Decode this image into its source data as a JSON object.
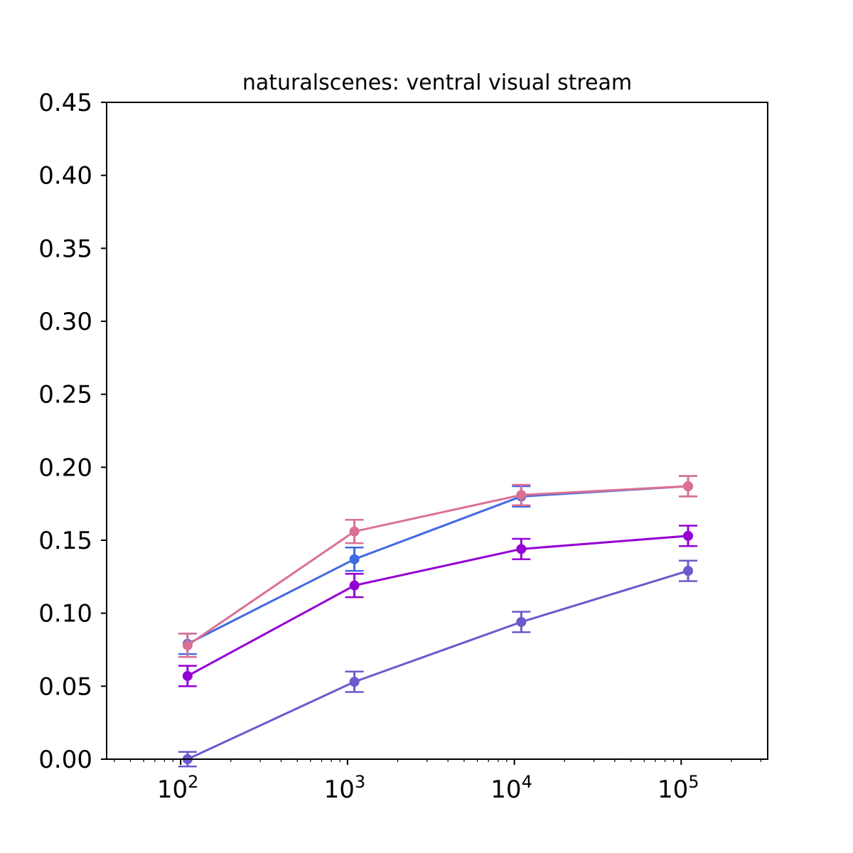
{
  "chart_data": {
    "type": "line",
    "title": "naturalscenes: ventral visual stream",
    "xlabel": "",
    "ylabel": "",
    "xscale": "log",
    "xlim": [
      36,
      330000
    ],
    "ylim": [
      0,
      0.45
    ],
    "grid": false,
    "x": [
      110,
      1100,
      11000,
      110000
    ],
    "x_tick_labels": [
      {
        "base": "10",
        "exp": "2",
        "value": 100
      },
      {
        "base": "10",
        "exp": "3",
        "value": 1000
      },
      {
        "base": "10",
        "exp": "4",
        "value": 10000
      },
      {
        "base": "10",
        "exp": "5",
        "value": 100000
      }
    ],
    "y_tick_labels": [
      "0.00",
      "0.05",
      "0.10",
      "0.15",
      "0.20",
      "0.25",
      "0.30",
      "0.35",
      "0.40",
      "0.45"
    ],
    "y_ticks": [
      0,
      0.05,
      0.1,
      0.15,
      0.2,
      0.25,
      0.3,
      0.35,
      0.4,
      0.45
    ],
    "series": [
      {
        "color": "#6a5acd",
        "values": [
          0.0,
          0.053,
          0.094,
          0.129
        ],
        "errors": [
          0.005,
          0.007,
          0.007,
          0.007
        ]
      },
      {
        "color": "#9400d3",
        "values": [
          0.057,
          0.119,
          0.144,
          0.153
        ],
        "errors": [
          0.007,
          0.008,
          0.007,
          0.007
        ]
      },
      {
        "color": "#4169e1",
        "values": [
          0.079,
          0.137,
          0.18,
          0.187
        ],
        "errors": [
          0.007,
          0.008,
          0.007,
          0.007
        ]
      },
      {
        "color": "#db7093",
        "values": [
          0.078,
          0.156,
          0.181,
          0.187
        ],
        "errors": [
          0.008,
          0.008,
          0.007,
          0.007
        ]
      }
    ]
  }
}
